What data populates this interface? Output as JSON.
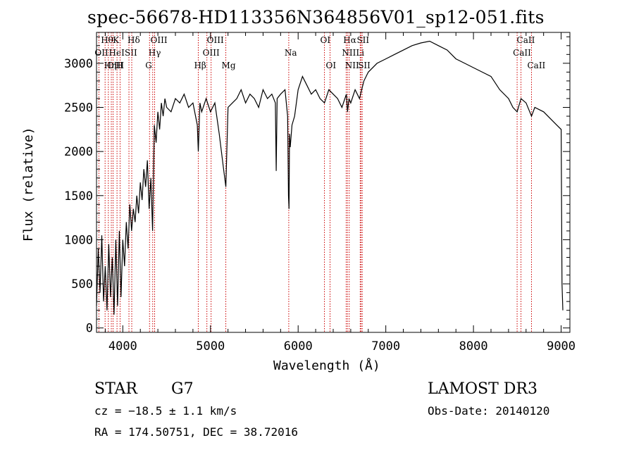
{
  "chart_data": {
    "type": "line",
    "title": "spec-56678-HD113356N364856V01_sp12-051.fits",
    "xlabel": "Wavelength (Å)",
    "ylabel": "Flux (relative)",
    "xlim": [
      3700,
      9100
    ],
    "ylim": [
      -50,
      3350
    ],
    "x_ticks": [
      4000,
      5000,
      6000,
      7000,
      8000,
      9000
    ],
    "y_ticks": [
      0,
      500,
      1000,
      1500,
      2000,
      2500,
      3000
    ],
    "grid": false,
    "line_color": "#000000",
    "marker_color": "#cc0000",
    "spectral_lines": [
      {
        "label": "Hθ",
        "wavelength": 3798,
        "row": 0
      },
      {
        "label": "OII",
        "wavelength": 3727,
        "row": 1
      },
      {
        "label": "OIII",
        "wavelength": 3869,
        "row": 2
      },
      {
        "label": "K",
        "wavelength": 3934,
        "row": 0
      },
      {
        "label": "HeI",
        "wavelength": 3889,
        "row": 1
      },
      {
        "label": "Hη",
        "wavelength": 3835,
        "row": 2
      },
      {
        "label": "H",
        "wavelength": 3969,
        "row": 2
      },
      {
        "label": "SII",
        "wavelength": 4070,
        "row": 1
      },
      {
        "label": "Hδ",
        "wavelength": 4102,
        "row": 0
      },
      {
        "label": "OIII",
        "wavelength": 4363,
        "row": 0
      },
      {
        "label": "Hγ",
        "wavelength": 4341,
        "row": 1
      },
      {
        "label": "G",
        "wavelength": 4305,
        "row": 2
      },
      {
        "label": "Hβ",
        "wavelength": 4861,
        "row": 2
      },
      {
        "label": "OIII",
        "wavelength": 5007,
        "row": 0
      },
      {
        "label": "OIII",
        "wavelength": 4959,
        "row": 1
      },
      {
        "label": "Mg",
        "wavelength": 5175,
        "row": 2
      },
      {
        "label": "Na",
        "wavelength": 5893,
        "row": 1
      },
      {
        "label": "OI",
        "wavelength": 6300,
        "row": 0
      },
      {
        "label": "OI",
        "wavelength": 6364,
        "row": 2
      },
      {
        "label": "Hα",
        "wavelength": 6563,
        "row": 0
      },
      {
        "label": "SII",
        "wavelength": 6717,
        "row": 0
      },
      {
        "label": "NII",
        "wavelength": 6548,
        "row": 1
      },
      {
        "label": "Li",
        "wavelength": 6708,
        "row": 1
      },
      {
        "label": "NII",
        "wavelength": 6583,
        "row": 2
      },
      {
        "label": "SII",
        "wavelength": 6731,
        "row": 2
      },
      {
        "label": "CaII",
        "wavelength": 8542,
        "row": 0
      },
      {
        "label": "CaII",
        "wavelength": 8498,
        "row": 1
      },
      {
        "label": "CaII",
        "wavelength": 8662,
        "row": 2
      }
    ],
    "series": [
      {
        "x": [
          3700,
          3720,
          3740,
          3760,
          3780,
          3800,
          3820,
          3840,
          3860,
          3880,
          3900,
          3920,
          3940,
          3960,
          3980,
          4000,
          4020,
          4040,
          4060,
          4080,
          4100,
          4120,
          4140,
          4160,
          4180,
          4200,
          4220,
          4240,
          4260,
          4280,
          4300,
          4320,
          4340,
          4360,
          4380,
          4400,
          4420,
          4440,
          4460,
          4480,
          4500,
          4550,
          4600,
          4650,
          4700,
          4750,
          4800,
          4850,
          4861,
          4880,
          4900,
          4950,
          5000,
          5050,
          5100,
          5150,
          5175,
          5200,
          5250,
          5300,
          5350,
          5400,
          5450,
          5500,
          5550,
          5600,
          5650,
          5700,
          5740,
          5750,
          5760,
          5800,
          5850,
          5880,
          5890,
          5896,
          5902,
          5910,
          5930,
          5960,
          6000,
          6050,
          6100,
          6150,
          6200,
          6250,
          6300,
          6350,
          6400,
          6450,
          6500,
          6550,
          6563,
          6580,
          6600,
          6650,
          6700,
          6750,
          6800,
          6900,
          7000,
          7100,
          7200,
          7300,
          7400,
          7500,
          7600,
          7700,
          7800,
          7900,
          8000,
          8100,
          8200,
          8300,
          8400,
          8450,
          8498,
          8542,
          8600,
          8662,
          8700,
          8800,
          8900,
          8950,
          9000,
          9010,
          9020
        ],
        "y": [
          250,
          900,
          400,
          1050,
          300,
          700,
          200,
          950,
          350,
          800,
          150,
          1000,
          250,
          1100,
          350,
          1000,
          700,
          1200,
          900,
          1400,
          1100,
          1350,
          1200,
          1500,
          1300,
          1650,
          1450,
          1800,
          1600,
          1900,
          1350,
          1700,
          1100,
          2300,
          2100,
          2450,
          2250,
          2550,
          2400,
          2600,
          2500,
          2450,
          2600,
          2550,
          2650,
          2500,
          2550,
          2300,
          2000,
          2550,
          2450,
          2600,
          2450,
          2550,
          2200,
          1800,
          1600,
          2500,
          2550,
          2600,
          2700,
          2550,
          2650,
          2600,
          2500,
          2700,
          2600,
          2650,
          2550,
          1780,
          2600,
          2650,
          2700,
          2400,
          1500,
          1350,
          2200,
          2050,
          2300,
          2400,
          2700,
          2850,
          2750,
          2650,
          2700,
          2600,
          2550,
          2700,
          2650,
          2600,
          2500,
          2650,
          2450,
          2600,
          2550,
          2700,
          2600,
          2800,
          2900,
          3000,
          3050,
          3100,
          3150,
          3200,
          3230,
          3250,
          3200,
          3150,
          3050,
          3000,
          2950,
          2900,
          2850,
          2700,
          2600,
          2500,
          2450,
          2600,
          2550,
          2400,
          2500,
          2450,
          2350,
          2300,
          2250,
          500,
          200
        ]
      }
    ]
  },
  "info": {
    "object_class": "STAR",
    "subclass": "G7",
    "release": "LAMOST DR3",
    "redshift": "cz = −18.5 ± 1.1 km/s",
    "obs_date": "Obs-Date: 20140120",
    "coords": "RA = 174.50751, DEC =  38.72016"
  }
}
